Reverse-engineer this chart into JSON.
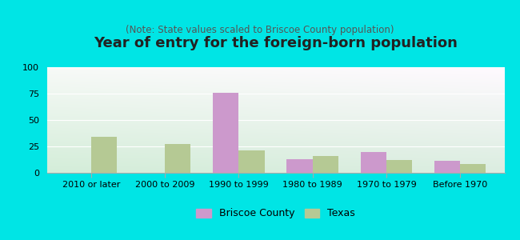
{
  "title": "Year of entry for the foreign-born population",
  "subtitle": "(Note: State values scaled to Briscoe County population)",
  "categories": [
    "2010 or later",
    "2000 to 2009",
    "1990 to 1999",
    "1980 to 1989",
    "1970 to 1979",
    "Before 1970"
  ],
  "briscoe_values": [
    0,
    0,
    76,
    13,
    20,
    11
  ],
  "texas_values": [
    34,
    27,
    21,
    16,
    12,
    8
  ],
  "briscoe_color": "#cc99cc",
  "texas_color": "#b5c994",
  "background_color": "#00e5e5",
  "title_color": "#222222",
  "subtitle_color": "#555555",
  "ylim": [
    0,
    100
  ],
  "yticks": [
    0,
    25,
    50,
    75,
    100
  ],
  "bar_width": 0.35,
  "legend_labels": [
    "Briscoe County",
    "Texas"
  ],
  "title_fontsize": 13,
  "subtitle_fontsize": 8.5,
  "tick_fontsize": 8,
  "legend_fontsize": 9
}
